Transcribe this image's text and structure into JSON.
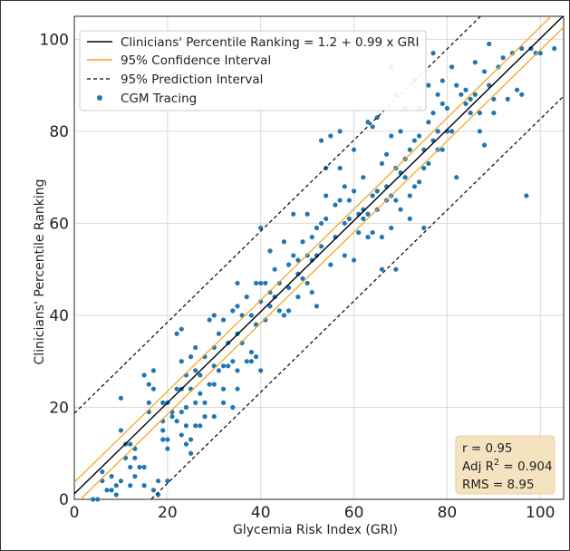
{
  "chart_data": {
    "type": "scatter",
    "xlabel": "Glycemia Risk Index (GRI)",
    "ylabel": "Clinicians' Percentile Ranking",
    "xlim": [
      0,
      105
    ],
    "ylim": [
      0,
      105
    ],
    "x_ticks": [
      "0",
      "20",
      "40",
      "60",
      "80",
      "100"
    ],
    "y_ticks": [
      "0",
      "20",
      "40",
      "60",
      "80",
      "100"
    ],
    "grid": true,
    "legend_position": "top-left",
    "regression": {
      "intercept": 1.2,
      "slope": 0.99
    },
    "confidence_interval_halfwidth": 2.5,
    "prediction_interval_halfwidth": 17.5,
    "legend": {
      "fit": "Clinicians' Percentile Ranking = 1.2 + 0.99 x GRI",
      "ci": "95% Confidence Interval",
      "pi": "95% Prediction Interval",
      "points": "CGM Tracing"
    },
    "stats": {
      "r": "r = 0.95",
      "adj_r2_prefix": "Adj R",
      "adj_r2_sup": "2",
      "adj_r2_value": " = 0.904",
      "rms": "RMS = 8.95"
    },
    "colors": {
      "fit": "#000000",
      "ci": "#f5a623",
      "pi": "#000000",
      "points": "#1f77b4",
      "stats_box": "#f5e3c0"
    },
    "points": [
      [
        4,
        0
      ],
      [
        5,
        0
      ],
      [
        6,
        4
      ],
      [
        6,
        6
      ],
      [
        7,
        2
      ],
      [
        8,
        2
      ],
      [
        8,
        5
      ],
      [
        9,
        3
      ],
      [
        9,
        1
      ],
      [
        10,
        15
      ],
      [
        10,
        22
      ],
      [
        10,
        4
      ],
      [
        11,
        12
      ],
      [
        11,
        9
      ],
      [
        12,
        7
      ],
      [
        12,
        3
      ],
      [
        12,
        12
      ],
      [
        13,
        11
      ],
      [
        13,
        9
      ],
      [
        13,
        5
      ],
      [
        14,
        7
      ],
      [
        15,
        27
      ],
      [
        15,
        7
      ],
      [
        15,
        3
      ],
      [
        16,
        25
      ],
      [
        16,
        21
      ],
      [
        16,
        19
      ],
      [
        17,
        24
      ],
      [
        17,
        28
      ],
      [
        17,
        2
      ],
      [
        18,
        1
      ],
      [
        18,
        4
      ],
      [
        19,
        21
      ],
      [
        19,
        17
      ],
      [
        19,
        13
      ],
      [
        19,
        15
      ],
      [
        20,
        21
      ],
      [
        20,
        13
      ],
      [
        20,
        11
      ],
      [
        20,
        4
      ],
      [
        21,
        19
      ],
      [
        21,
        18
      ],
      [
        22,
        24
      ],
      [
        22,
        17
      ],
      [
        22,
        36
      ],
      [
        23,
        37
      ],
      [
        23,
        30
      ],
      [
        23,
        24
      ],
      [
        23,
        19
      ],
      [
        23,
        14
      ],
      [
        24,
        27
      ],
      [
        24,
        20
      ],
      [
        24,
        16
      ],
      [
        24,
        12
      ],
      [
        25,
        31
      ],
      [
        25,
        24
      ],
      [
        25,
        13
      ],
      [
        25,
        10
      ],
      [
        26,
        33
      ],
      [
        26,
        28
      ],
      [
        26,
        21
      ],
      [
        26,
        16
      ],
      [
        27,
        27
      ],
      [
        27,
        23
      ],
      [
        27,
        16
      ],
      [
        28,
        31
      ],
      [
        28,
        21
      ],
      [
        28,
        18
      ],
      [
        29,
        39
      ],
      [
        29,
        25
      ],
      [
        30,
        40
      ],
      [
        30,
        33
      ],
      [
        30,
        29
      ],
      [
        30,
        25
      ],
      [
        30,
        18
      ],
      [
        31,
        36
      ],
      [
        31,
        28
      ],
      [
        32,
        39
      ],
      [
        32,
        29
      ],
      [
        32,
        24
      ],
      [
        32,
        21
      ],
      [
        33,
        34
      ],
      [
        33,
        29
      ],
      [
        34,
        41
      ],
      [
        34,
        30
      ],
      [
        34,
        20
      ],
      [
        35,
        47
      ],
      [
        35,
        42
      ],
      [
        35,
        36
      ],
      [
        35,
        28
      ],
      [
        35,
        24
      ],
      [
        36,
        40
      ],
      [
        36,
        34
      ],
      [
        37,
        44
      ],
      [
        37,
        30
      ],
      [
        38,
        40
      ],
      [
        38,
        32
      ],
      [
        38,
        30
      ],
      [
        39,
        47
      ],
      [
        39,
        38
      ],
      [
        39,
        31
      ],
      [
        40,
        47
      ],
      [
        40,
        59
      ],
      [
        40,
        43
      ],
      [
        40,
        28
      ],
      [
        41,
        47
      ],
      [
        41,
        39
      ],
      [
        42,
        54
      ],
      [
        42,
        45
      ],
      [
        42,
        42
      ],
      [
        43,
        50
      ],
      [
        43,
        44
      ],
      [
        44,
        47
      ],
      [
        44,
        41
      ],
      [
        45,
        56
      ],
      [
        45,
        40
      ],
      [
        46,
        51
      ],
      [
        46,
        46
      ],
      [
        46,
        41
      ],
      [
        47,
        62
      ],
      [
        47,
        53
      ],
      [
        48,
        52
      ],
      [
        48,
        49
      ],
      [
        48,
        44
      ],
      [
        49,
        56
      ],
      [
        49,
        48
      ],
      [
        50,
        62
      ],
      [
        50,
        53
      ],
      [
        50,
        47
      ],
      [
        51,
        57
      ],
      [
        51,
        52
      ],
      [
        51,
        45
      ],
      [
        52,
        59
      ],
      [
        52,
        53
      ],
      [
        52,
        42
      ],
      [
        53,
        78
      ],
      [
        53,
        60
      ],
      [
        53,
        55
      ],
      [
        54,
        72
      ],
      [
        54,
        66
      ],
      [
        54,
        61
      ],
      [
        55,
        79
      ],
      [
        55,
        51
      ],
      [
        56,
        64
      ],
      [
        56,
        57
      ],
      [
        57,
        80
      ],
      [
        57,
        72
      ],
      [
        57,
        65
      ],
      [
        58,
        68
      ],
      [
        58,
        60
      ],
      [
        58,
        53
      ],
      [
        59,
        65
      ],
      [
        59,
        61
      ],
      [
        60,
        76
      ],
      [
        60,
        67
      ],
      [
        60,
        52
      ],
      [
        61,
        62
      ],
      [
        61,
        58
      ],
      [
        62,
        70
      ],
      [
        62,
        63
      ],
      [
        62,
        61
      ],
      [
        63,
        82
      ],
      [
        63,
        62
      ],
      [
        63,
        57
      ],
      [
        64,
        81
      ],
      [
        64,
        66
      ],
      [
        64,
        58
      ],
      [
        65,
        83
      ],
      [
        65,
        67
      ],
      [
        65,
        63
      ],
      [
        66,
        73
      ],
      [
        66,
        57
      ],
      [
        66,
        50
      ],
      [
        67,
        75
      ],
      [
        67,
        68
      ],
      [
        67,
        65
      ],
      [
        68,
        94
      ],
      [
        68,
        79
      ],
      [
        68,
        66
      ],
      [
        68,
        59
      ],
      [
        69,
        88
      ],
      [
        69,
        72
      ],
      [
        69,
        65
      ],
      [
        69,
        50
      ],
      [
        70,
        80
      ],
      [
        70,
        71
      ],
      [
        70,
        63
      ],
      [
        71,
        85
      ],
      [
        71,
        74
      ],
      [
        71,
        70
      ],
      [
        72,
        76
      ],
      [
        72,
        66
      ],
      [
        72,
        61
      ],
      [
        73,
        91
      ],
      [
        73,
        78
      ],
      [
        73,
        68
      ],
      [
        74,
        85
      ],
      [
        74,
        79
      ],
      [
        74,
        69
      ],
      [
        75,
        76
      ],
      [
        75,
        59
      ],
      [
        75,
        72
      ],
      [
        76,
        90
      ],
      [
        76,
        82
      ],
      [
        76,
        73
      ],
      [
        77,
        97
      ],
      [
        77,
        84
      ],
      [
        77,
        78
      ],
      [
        78,
        88
      ],
      [
        78,
        80
      ],
      [
        78,
        76
      ],
      [
        79,
        91
      ],
      [
        79,
        86
      ],
      [
        79,
        76
      ],
      [
        80,
        85
      ],
      [
        80,
        80
      ],
      [
        81,
        94
      ],
      [
        81,
        80
      ],
      [
        82,
        90
      ],
      [
        82,
        70
      ],
      [
        83,
        88
      ],
      [
        84,
        89
      ],
      [
        84,
        86
      ],
      [
        85,
        87
      ],
      [
        85,
        84
      ],
      [
        86,
        95
      ],
      [
        86,
        88
      ],
      [
        87,
        84
      ],
      [
        87,
        80
      ],
      [
        88,
        93
      ],
      [
        88,
        77
      ],
      [
        89,
        90
      ],
      [
        89,
        99
      ],
      [
        90,
        87
      ],
      [
        90,
        84
      ],
      [
        91,
        94
      ],
      [
        92,
        96
      ],
      [
        93,
        87
      ],
      [
        94,
        97
      ],
      [
        95,
        89
      ],
      [
        96,
        98
      ],
      [
        96,
        88
      ],
      [
        97,
        66
      ],
      [
        98,
        98
      ],
      [
        99,
        97
      ],
      [
        100,
        97
      ],
      [
        103,
        98
      ]
    ]
  }
}
